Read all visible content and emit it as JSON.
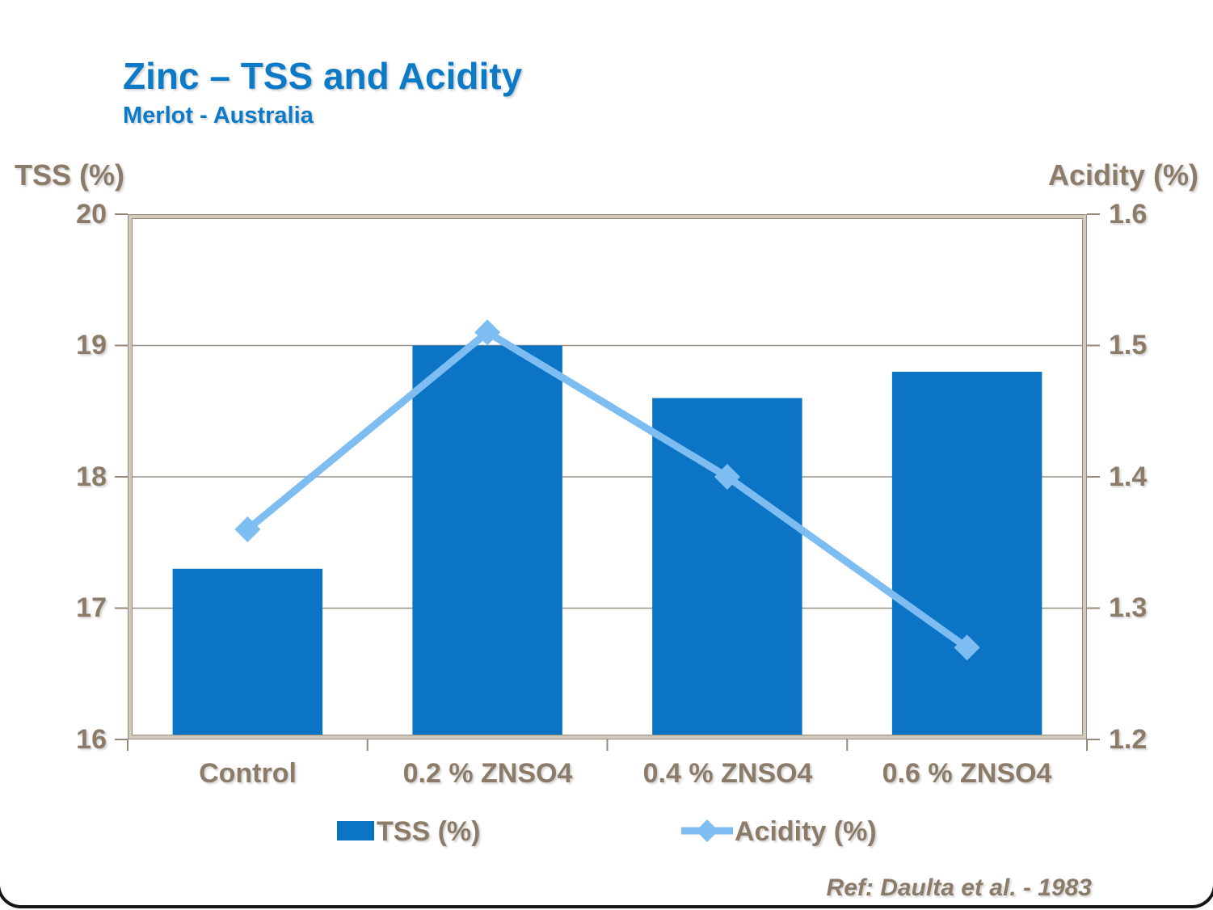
{
  "slide": {
    "title": "Zinc – TSS and Acidity",
    "subtitle": "Merlot - Australia",
    "reference": "Ref: Daulta et al. - 1983"
  },
  "chart_data": {
    "type": "bar",
    "subtype": "bar+line combo, dual axis",
    "categories": [
      "Control",
      "0.2 % ZNSO4",
      "0.4 % ZNSO4",
      "0.6 % ZNSO4"
    ],
    "series": [
      {
        "name": "TSS (%)",
        "type": "bar",
        "axis": "left",
        "color": "#0b74c4",
        "values": [
          17.3,
          19.0,
          18.6,
          18.8
        ]
      },
      {
        "name": "Acidity (%)",
        "type": "line",
        "axis": "right",
        "color": "#7dbdf2",
        "marker": "diamond",
        "values": [
          1.36,
          1.51,
          1.4,
          1.27
        ]
      }
    ],
    "left_axis": {
      "label": "TSS (%)",
      "min": 16,
      "max": 20,
      "step": 1,
      "ticks": [
        "20",
        "19",
        "18",
        "17",
        "16"
      ]
    },
    "right_axis": {
      "label": "Acidity (%)",
      "min": 1.2,
      "max": 1.6,
      "step": 0.1,
      "ticks": [
        "1.6",
        "1.5",
        "1.4",
        "1.3",
        "1.2"
      ]
    },
    "grid": "horizontal gridlines on",
    "legend_position": "bottom"
  },
  "colors": {
    "title_blue": "#0d7ac8",
    "bar_blue": "#0b74c4",
    "line_blue": "#7dbdf2",
    "text_brown": "#8c7b68",
    "grid_gray": "#9b9287",
    "frame_dark": "#968a7b",
    "frame_light": "#d2c9bd"
  }
}
